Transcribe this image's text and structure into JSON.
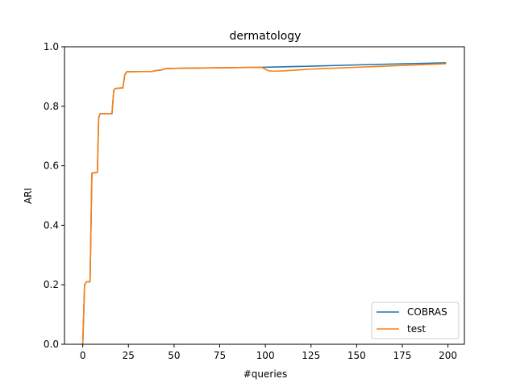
{
  "chart_data": {
    "type": "line",
    "title": "dermatology",
    "xlabel": "#queries",
    "ylabel": "ARI",
    "xlim": [
      -10,
      209
    ],
    "ylim": [
      0,
      1
    ],
    "xticks": [
      0,
      25,
      50,
      75,
      100,
      125,
      150,
      175,
      200
    ],
    "yticks": [
      0.0,
      0.2,
      0.4,
      0.6,
      0.8,
      1.0
    ],
    "xtick_labels": [
      "0",
      "25",
      "50",
      "75",
      "100",
      "125",
      "150",
      "175",
      "200"
    ],
    "ytick_labels": [
      "0.0",
      "0.2",
      "0.4",
      "0.6",
      "0.8",
      "1.0"
    ],
    "grid": false,
    "legend_position": "bottom-right",
    "series": [
      {
        "name": "COBRAS",
        "color": "#1f77b4",
        "x": [
          0,
          1,
          2,
          4,
          5,
          8,
          8.7,
          9.5,
          16,
          17,
          18,
          22,
          23,
          24,
          38,
          40,
          43,
          45,
          47,
          55,
          70,
          85,
          99,
          120,
          150,
          170,
          199
        ],
        "y": [
          0.0,
          0.2,
          0.21,
          0.21,
          0.575,
          0.578,
          0.76,
          0.775,
          0.775,
          0.855,
          0.86,
          0.862,
          0.905,
          0.916,
          0.917,
          0.92,
          0.922,
          0.926,
          0.927,
          0.928,
          0.929,
          0.93,
          0.931,
          0.934,
          0.939,
          0.942,
          0.946
        ]
      },
      {
        "name": "test",
        "color": "#ff7f0e",
        "x": [
          0,
          1,
          2,
          4,
          5,
          8,
          8.7,
          9.5,
          16,
          17,
          18,
          22,
          23,
          24,
          38,
          40,
          43,
          45,
          47,
          55,
          70,
          85,
          98,
          100,
          102,
          105,
          110,
          125,
          150,
          175,
          199
        ],
        "y": [
          0.0,
          0.2,
          0.21,
          0.21,
          0.575,
          0.578,
          0.76,
          0.775,
          0.775,
          0.855,
          0.86,
          0.862,
          0.905,
          0.916,
          0.917,
          0.92,
          0.922,
          0.926,
          0.927,
          0.928,
          0.929,
          0.93,
          0.931,
          0.924,
          0.919,
          0.918,
          0.919,
          0.925,
          0.931,
          0.937,
          0.943
        ]
      }
    ]
  }
}
